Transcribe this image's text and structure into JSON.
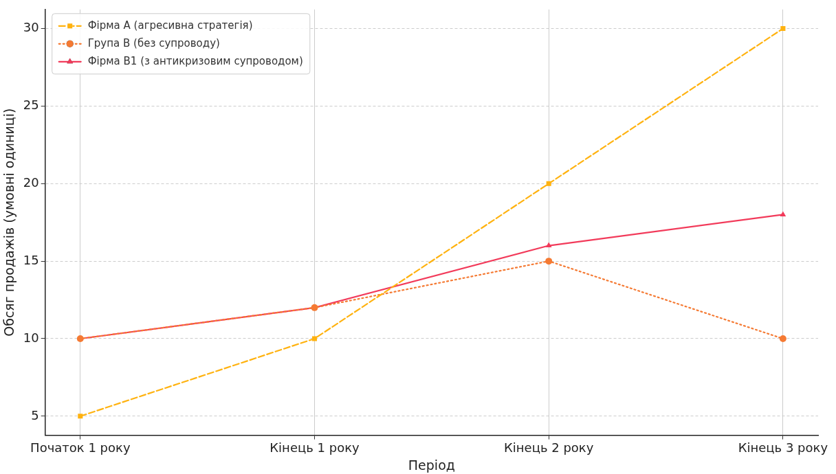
{
  "chart_data": {
    "type": "line",
    "xlabel": "Період",
    "ylabel": "Обсяг продажів (умовні одиниці)",
    "categories": [
      "Початок 1 року",
      "Кінець 1 року",
      "Кінець 2 року",
      "Кінець 3 року"
    ],
    "series": [
      {
        "name": "Фірма А (агресивна стратегія)",
        "color": "#ffb20f",
        "values": [
          5,
          10,
          20,
          30
        ],
        "marker": "square",
        "line_style": "dashed"
      },
      {
        "name": "Група В (без супроводу)",
        "color": "#f57a33",
        "values": [
          10,
          12,
          15,
          10
        ],
        "marker": "circle",
        "line_style": "dotted"
      },
      {
        "name": "Фірма В1 (з антикризовим супроводом)",
        "color": "#f23a5a",
        "values": [
          10,
          12,
          16,
          18
        ],
        "marker": "triangle",
        "line_style": "solid"
      }
    ],
    "ylim": [
      3.77,
      31.23
    ],
    "yticks": [
      5,
      10,
      15,
      20,
      25,
      30
    ],
    "grid": true,
    "legend": "top left"
  }
}
